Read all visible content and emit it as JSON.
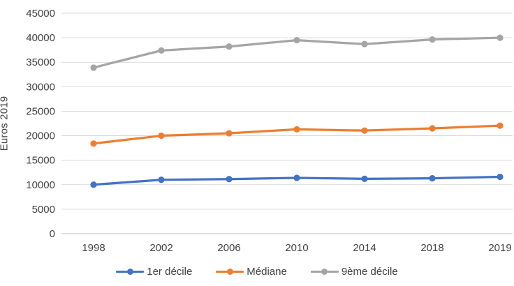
{
  "chart_data": {
    "type": "line",
    "title": "",
    "xlabel": "",
    "ylabel": "Euros 2019",
    "categories": [
      "1998",
      "2002",
      "2006",
      "2010",
      "2014",
      "2018",
      "2019"
    ],
    "series": [
      {
        "name": "1er décile",
        "color": "#4472C4",
        "values": [
          10000,
          11000,
          11150,
          11400,
          11200,
          11300,
          11600
        ]
      },
      {
        "name": "Médiane",
        "color": "#ED7D31",
        "values": [
          18400,
          20000,
          20500,
          21300,
          21050,
          21500,
          22050
        ]
      },
      {
        "name": "9ème décile",
        "color": "#A5A5A5",
        "values": [
          33900,
          37400,
          38200,
          39500,
          38700,
          39650,
          40000
        ]
      }
    ],
    "ylim": [
      0,
      45000
    ],
    "ytick_step": 5000,
    "yticks": [
      "45000",
      "40000",
      "35000",
      "30000",
      "25000",
      "20000",
      "15000",
      "10000",
      "5000",
      "0"
    ],
    "grid": true,
    "legend_position": "bottom",
    "marker": "circle",
    "colors": {
      "gridline": "#D9D9D9",
      "axis_line": "#BFBFBF",
      "text": "#404040",
      "background": "#FFFFFF"
    }
  }
}
